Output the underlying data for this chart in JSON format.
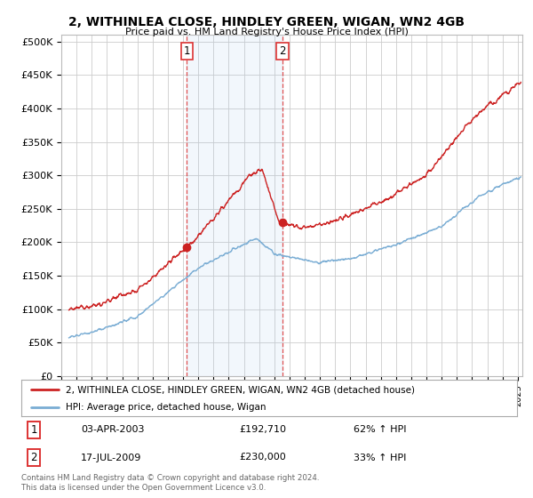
{
  "title": "2, WITHINLEA CLOSE, HINDLEY GREEN, WIGAN, WN2 4GB",
  "subtitle": "Price paid vs. HM Land Registry's House Price Index (HPI)",
  "ylabel_ticks": [
    "£0",
    "£50K",
    "£100K",
    "£150K",
    "£200K",
    "£250K",
    "£300K",
    "£350K",
    "£400K",
    "£450K",
    "£500K"
  ],
  "ytick_values": [
    0,
    50000,
    100000,
    150000,
    200000,
    250000,
    300000,
    350000,
    400000,
    450000,
    500000
  ],
  "ylim": [
    0,
    510000
  ],
  "xlim_start": 1995.3,
  "xlim_end": 2025.3,
  "hpi_color": "#7aadd4",
  "price_color": "#cc2222",
  "shade_color": "#ddeeff",
  "purchase1_x": 2003.25,
  "purchase1_y": 192710,
  "purchase2_x": 2009.54,
  "purchase2_y": 230000,
  "vline_color": "#dd3333",
  "legend_label_price": "2, WITHINLEA CLOSE, HINDLEY GREEN, WIGAN, WN2 4GB (detached house)",
  "legend_label_hpi": "HPI: Average price, detached house, Wigan",
  "table_row1_label": "1",
  "table_row1_date": "03-APR-2003",
  "table_row1_price": "£192,710",
  "table_row1_change": "62% ↑ HPI",
  "table_row2_label": "2",
  "table_row2_date": "17-JUL-2009",
  "table_row2_price": "£230,000",
  "table_row2_change": "33% ↑ HPI",
  "footnote": "Contains HM Land Registry data © Crown copyright and database right 2024.\nThis data is licensed under the Open Government Licence v3.0.",
  "bg_color": "#ffffff",
  "grid_color": "#cccccc"
}
